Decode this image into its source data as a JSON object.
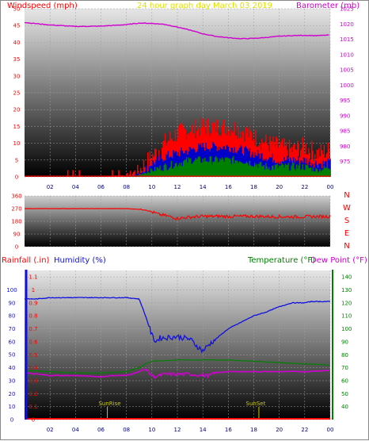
{
  "title": "24 hour graph day   March 03 2019",
  "colors": {
    "wind": "#ff0000",
    "wind_mid": "#0000c8",
    "wind_low": "#008000",
    "barometer": "#d000d0",
    "direction": "#ff0000",
    "humidity": "#1010e0",
    "rain": "#ff0000",
    "temperature": "#008000",
    "dewpoint": "#d000d0",
    "title": "#e0e000",
    "sun": "#c8c800"
  },
  "chart_data": [
    {
      "type": "line",
      "name": "wind-barometer",
      "left_label": "Windspeed (mph)",
      "right_label": "Barometer (mb)",
      "left_ylim": [
        0,
        50
      ],
      "left_ticks": [
        "0",
        "5",
        "10",
        "15",
        "20",
        "25",
        "30",
        "35",
        "40",
        "45",
        "50"
      ],
      "right_ylim": [
        970,
        1025
      ],
      "right_ticks": [
        "975",
        "980",
        "985",
        "990",
        "995",
        "1000",
        "1005",
        "1010",
        "1015",
        "1020",
        "1025"
      ],
      "x_ticks": [
        "02",
        "04",
        "06",
        "08",
        "10",
        "12",
        "14",
        "16",
        "18",
        "20",
        "22",
        "00"
      ],
      "x_range": [
        0,
        24
      ],
      "barometer": {
        "x": [
          0,
          2,
          4,
          6,
          8,
          9,
          10,
          11,
          12,
          13,
          14,
          15,
          16,
          17,
          18,
          19,
          20,
          21,
          22,
          23,
          24
        ],
        "y": [
          1020.5,
          1019.7,
          1019.2,
          1019.3,
          1019.8,
          1020.3,
          1020.2,
          1019.9,
          1019.0,
          1018.0,
          1016.8,
          1016.0,
          1015.5,
          1015.2,
          1015.3,
          1015.6,
          1016.0,
          1016.2,
          1016.3,
          1016.2,
          1016.4
        ]
      },
      "wind_gust_max": {
        "x": [
          0,
          4,
          6,
          8,
          9,
          10,
          11,
          12,
          13,
          14,
          15,
          16,
          17,
          18,
          19,
          20,
          21,
          22,
          23,
          24
        ],
        "y": [
          0,
          0,
          0,
          0.5,
          2,
          6,
          10,
          13,
          14,
          15,
          15,
          15,
          14,
          12,
          10,
          9,
          8,
          9,
          7,
          8
        ]
      },
      "wind_average": {
        "x": [
          0,
          8,
          9,
          10,
          11,
          12,
          13,
          14,
          15,
          16,
          17,
          18,
          19,
          20,
          21,
          22,
          23,
          24
        ],
        "y": [
          0,
          0,
          1,
          4,
          6,
          7,
          8,
          9,
          9,
          9,
          8,
          7,
          6,
          5,
          5,
          5,
          4,
          4
        ]
      },
      "wind_low": {
        "x": [
          0,
          8,
          9,
          10,
          11,
          12,
          13,
          14,
          15,
          16,
          17,
          18,
          19,
          20,
          21,
          22,
          23,
          24
        ],
        "y": [
          0,
          0,
          0.5,
          2,
          3,
          4,
          5,
          5,
          5,
          5,
          5,
          4,
          3,
          3,
          3,
          3,
          2,
          3
        ]
      }
    },
    {
      "type": "line",
      "name": "wind-direction",
      "y_ticks": [
        "360",
        "270",
        "180",
        "90",
        "0"
      ],
      "ylim": [
        0,
        360
      ],
      "compass": [
        "N",
        "W",
        "S",
        "E",
        "N"
      ],
      "direction": {
        "x": [
          0,
          8,
          9.5,
          10.5,
          11.5,
          12,
          13,
          14,
          16,
          18,
          20,
          22,
          24
        ],
        "y": [
          270,
          270,
          262,
          230,
          212,
          200,
          210,
          215,
          215,
          215,
          212,
          212,
          215
        ]
      }
    },
    {
      "type": "line",
      "name": "humidity-temperature",
      "rain_label": "Rainfall (.in)",
      "humidity_label": "Humidity (%)",
      "temperature_label": "Temperature (°F)",
      "dewpoint_label": "Dew Point (°F)",
      "rain_ylim": [
        0,
        1.15
      ],
      "rain_ticks": [
        "0",
        "0.1",
        "0.2",
        "0.3",
        "0.4",
        "0.5",
        "0.6",
        "0.7",
        "0.8",
        "0.9",
        "1",
        "1.1"
      ],
      "humidity_ylim": [
        0,
        100
      ],
      "humidity_ticks": [
        "0",
        "10",
        "20",
        "30",
        "40",
        "50",
        "60",
        "70",
        "80",
        "90",
        "100"
      ],
      "temp_ylim": [
        30,
        145
      ],
      "temp_ticks": [
        "40",
        "50",
        "60",
        "70",
        "80",
        "90",
        "100",
        "110",
        "120",
        "130",
        "140"
      ],
      "x_ticks": [
        "02",
        "04",
        "06",
        "08",
        "10",
        "12",
        "14",
        "16",
        "18",
        "20",
        "22",
        "00"
      ],
      "sunrise_label": "SunRise",
      "sunset_label": "SunSet",
      "sunrise_hour": 6.5,
      "sunset_hour": 18.4,
      "humidity": {
        "x": [
          0,
          1,
          2,
          4,
          6,
          8,
          9,
          9.5,
          10,
          10.3,
          10.6,
          11,
          12,
          13,
          13.5,
          14,
          14.5,
          15,
          16,
          17,
          18,
          19,
          20,
          21,
          22,
          22.5,
          23,
          24
        ],
        "y": [
          93,
          93,
          94,
          94,
          94,
          94,
          93,
          80,
          65,
          60,
          63,
          63,
          64,
          62,
          57,
          53,
          58,
          62,
          70,
          75,
          80,
          83,
          87,
          90,
          90,
          91,
          91,
          91
        ]
      },
      "temperature": {
        "x": [
          0,
          2,
          4,
          6,
          8,
          9,
          9.5,
          10,
          12,
          14,
          16,
          18,
          20,
          22,
          24
        ],
        "y": [
          68,
          67,
          66,
          66,
          67,
          70,
          73,
          75,
          76,
          76,
          76,
          75,
          74,
          73,
          72
        ]
      },
      "dewpoint": {
        "x": [
          0,
          1,
          2,
          4,
          6,
          7,
          8,
          9,
          9.5,
          10,
          10.3,
          11,
          12,
          13,
          14,
          14.5,
          15,
          16,
          18,
          20,
          22,
          24
        ],
        "y": [
          66,
          65,
          64,
          64,
          63,
          64,
          64,
          67,
          69,
          64,
          63,
          65,
          65,
          65,
          64,
          64,
          66,
          67,
          67,
          67,
          67,
          68
        ]
      },
      "rainfall": {
        "x": [
          0,
          24
        ],
        "y": [
          0,
          0
        ]
      }
    }
  ]
}
